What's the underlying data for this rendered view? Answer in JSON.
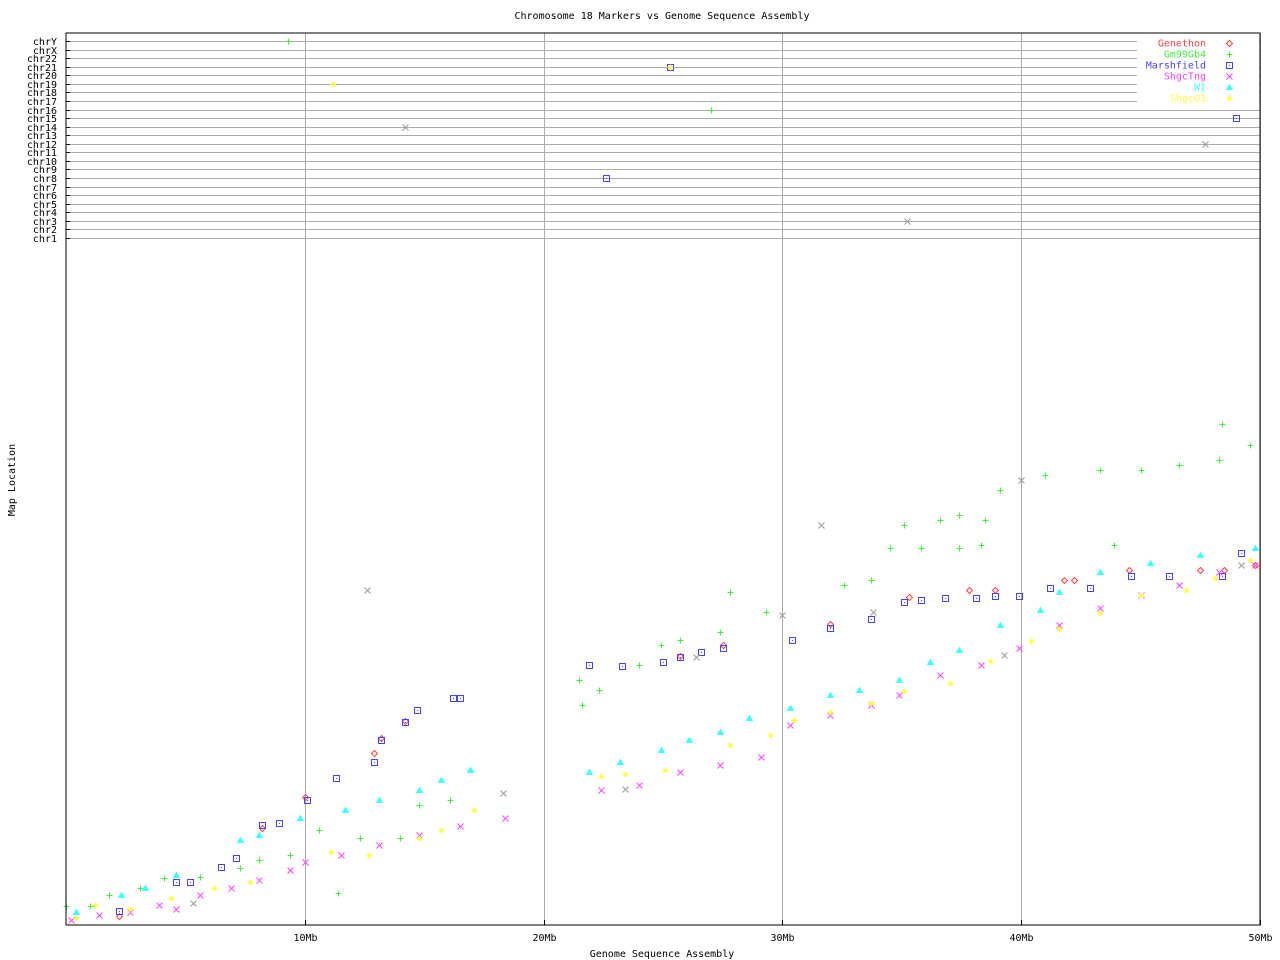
{
  "chart_data": {
    "type": "scatter",
    "title": "Chromosome 18 Markers vs Genome Sequence Assembly",
    "xlabel": "Genome Sequence Assembly",
    "ylabel": "Map Location",
    "xlim": [
      0,
      50
    ],
    "x_ticks": [
      {
        "value": 10,
        "label": "10Mb"
      },
      {
        "value": 20,
        "label": "20Mb"
      },
      {
        "value": 30,
        "label": "30Mb"
      },
      {
        "value": 40,
        "label": "40Mb"
      },
      {
        "value": 50,
        "label": "50Mb"
      }
    ],
    "ylim": [
      0,
      100
    ],
    "y_chromosome_rows": [
      "chrY",
      "chrX",
      "chr22",
      "chr21",
      "chr20",
      "chr19",
      "chr18",
      "chr17",
      "chr16",
      "chr15",
      "chr14",
      "chr13",
      "chr12",
      "chr11",
      "chr10",
      "chr9",
      "chr8",
      "chr7",
      "chr6",
      "chr5",
      "chr4",
      "chr3",
      "chr2",
      "chr1"
    ],
    "grid": true,
    "legend_position": "top-right",
    "series": [
      {
        "name": "Genethon",
        "color": "#ff4444",
        "marker": "diamond",
        "points": [
          [
            2.2,
            1.3
          ],
          [
            8.2,
            14.3
          ],
          [
            10.0,
            18.8
          ],
          [
            12.9,
            25.3
          ],
          [
            13.2,
            27.5
          ],
          [
            14.2,
            30.0
          ],
          [
            25.7,
            39.6
          ],
          [
            27.5,
            41.2
          ],
          [
            32.0,
            44.3
          ],
          [
            35.3,
            48.2
          ],
          [
            37.8,
            49.3
          ],
          [
            38.9,
            49.3
          ],
          [
            41.8,
            50.7
          ],
          [
            42.2,
            50.7
          ],
          [
            44.5,
            52.2
          ],
          [
            47.5,
            52.2
          ],
          [
            48.5,
            52.2
          ],
          [
            49.8,
            52.9
          ]
        ],
        "off_chromosome": []
      },
      {
        "name": "Gm99Gb4",
        "color": "#44ee44",
        "marker": "plus",
        "points": [
          [
            0,
            2.8
          ],
          [
            1.0,
            2.8
          ],
          [
            1.8,
            4.4
          ],
          [
            3.1,
            5.4
          ],
          [
            4.1,
            6.9
          ],
          [
            5.6,
            7.1
          ],
          [
            7.3,
            8.4
          ],
          [
            8.1,
            9.6
          ],
          [
            9.4,
            10.3
          ],
          [
            10.6,
            14.0
          ],
          [
            12.3,
            12.8
          ],
          [
            14.0,
            12.8
          ],
          [
            14.8,
            17.6
          ],
          [
            16.1,
            18.4
          ],
          [
            16.9,
            22.8
          ],
          [
            11.4,
            4.7
          ],
          [
            21.5,
            36.0
          ],
          [
            22.3,
            34.6
          ],
          [
            21.6,
            32.4
          ],
          [
            24.0,
            38.2
          ],
          [
            24.9,
            41.2
          ],
          [
            25.7,
            41.9
          ],
          [
            27.4,
            43.1
          ],
          [
            27.8,
            49.0
          ],
          [
            29.3,
            46.0
          ],
          [
            32.6,
            50.0
          ],
          [
            33.7,
            50.7
          ],
          [
            34.5,
            55.4
          ],
          [
            35.8,
            55.4
          ],
          [
            37.4,
            55.4
          ],
          [
            38.3,
            55.9
          ],
          [
            35.1,
            58.8
          ],
          [
            36.6,
            59.6
          ],
          [
            37.4,
            60.3
          ],
          [
            38.5,
            59.6
          ],
          [
            39.1,
            64.0
          ],
          [
            41.0,
            66.2
          ],
          [
            43.3,
            66.9
          ],
          [
            45.0,
            66.9
          ],
          [
            46.6,
            67.6
          ],
          [
            48.3,
            68.4
          ],
          [
            48.4,
            73.7
          ],
          [
            49.6,
            70.6
          ],
          [
            43.9,
            55.9
          ]
        ],
        "off_chromosome": [
          {
            "chr": "chr16",
            "x": 27.0
          },
          {
            "chr": "chrY",
            "x": 9.3
          }
        ]
      },
      {
        "name": "Marshfield",
        "color": "#4444ff",
        "marker": "square",
        "points": [
          [
            2.2,
            2.1
          ],
          [
            4.6,
            6.3
          ],
          [
            5.2,
            6.3
          ],
          [
            6.5,
            8.5
          ],
          [
            7.1,
            9.9
          ],
          [
            8.2,
            14.7
          ],
          [
            8.9,
            15.0
          ],
          [
            10.1,
            18.4
          ],
          [
            11.3,
            21.6
          ],
          [
            12.9,
            24.0
          ],
          [
            13.2,
            27.2
          ],
          [
            14.2,
            29.9
          ],
          [
            14.7,
            31.6
          ],
          [
            16.2,
            33.4
          ],
          [
            16.5,
            33.4
          ],
          [
            21.9,
            38.2
          ],
          [
            23.3,
            38.1
          ],
          [
            25.0,
            38.7
          ],
          [
            25.7,
            39.4
          ],
          [
            26.6,
            40.1
          ],
          [
            27.5,
            40.7
          ],
          [
            30.4,
            41.9
          ],
          [
            32.0,
            43.7
          ],
          [
            33.7,
            45.0
          ],
          [
            35.1,
            47.5
          ],
          [
            35.8,
            47.8
          ],
          [
            36.8,
            48.1
          ],
          [
            38.1,
            48.1
          ],
          [
            38.9,
            48.4
          ],
          [
            39.9,
            48.4
          ],
          [
            41.2,
            49.6
          ],
          [
            42.9,
            49.6
          ],
          [
            44.6,
            51.3
          ],
          [
            46.2,
            51.3
          ],
          [
            48.4,
            51.3
          ],
          [
            49.2,
            54.7
          ]
        ],
        "off_chromosome": [
          {
            "chr": "chr21",
            "x": 25.3
          },
          {
            "chr": "chr8",
            "x": 22.6
          },
          {
            "chr": "chr15",
            "x": 49.0
          }
        ]
      },
      {
        "name": "ShgcTng",
        "color": "#ff44ff",
        "marker": "cross",
        "points": [
          [
            0.2,
            0.7
          ],
          [
            1.4,
            1.5
          ],
          [
            2.7,
            1.9
          ],
          [
            3.9,
            2.9
          ],
          [
            4.6,
            2.4
          ],
          [
            5.6,
            4.4
          ],
          [
            6.9,
            5.4
          ],
          [
            8.1,
            6.6
          ],
          [
            9.4,
            8.1
          ],
          [
            10.0,
            9.3
          ],
          [
            11.5,
            10.3
          ],
          [
            13.1,
            11.8
          ],
          [
            14.8,
            13.2
          ],
          [
            16.5,
            14.6
          ],
          [
            18.4,
            15.7
          ],
          [
            22.4,
            19.9
          ],
          [
            24.0,
            20.6
          ],
          [
            25.7,
            22.5
          ],
          [
            27.4,
            23.5
          ],
          [
            29.1,
            24.7
          ],
          [
            30.3,
            29.4
          ],
          [
            32.0,
            30.9
          ],
          [
            33.7,
            32.4
          ],
          [
            34.9,
            33.8
          ],
          [
            36.6,
            36.8
          ],
          [
            38.3,
            38.2
          ],
          [
            39.9,
            40.7
          ],
          [
            41.6,
            44.1
          ],
          [
            43.3,
            46.6
          ],
          [
            45.0,
            48.5
          ],
          [
            46.6,
            50.0
          ],
          [
            48.3,
            51.9
          ],
          [
            49.8,
            52.9
          ]
        ],
        "off_chromosome": []
      },
      {
        "name": "WI",
        "color": "#44ffff",
        "marker": "triangle",
        "points": [
          [
            0.4,
            1.9
          ],
          [
            2.3,
            4.4
          ],
          [
            3.3,
            5.4
          ],
          [
            4.6,
            7.4
          ],
          [
            7.3,
            12.5
          ],
          [
            8.1,
            13.2
          ],
          [
            9.8,
            15.7
          ],
          [
            11.7,
            16.9
          ],
          [
            13.1,
            18.4
          ],
          [
            14.8,
            19.9
          ],
          [
            15.7,
            21.3
          ],
          [
            16.9,
            22.8
          ],
          [
            21.9,
            22.5
          ],
          [
            23.2,
            24.0
          ],
          [
            24.9,
            25.7
          ],
          [
            26.1,
            27.2
          ],
          [
            27.4,
            28.4
          ],
          [
            28.6,
            30.4
          ],
          [
            30.3,
            31.9
          ],
          [
            32.0,
            33.8
          ],
          [
            33.2,
            34.6
          ],
          [
            34.9,
            36.0
          ],
          [
            36.2,
            38.7
          ],
          [
            37.4,
            40.4
          ],
          [
            39.1,
            44.1
          ],
          [
            40.8,
            46.3
          ],
          [
            41.6,
            49.0
          ],
          [
            43.3,
            51.9
          ],
          [
            45.4,
            53.2
          ],
          [
            47.5,
            54.4
          ],
          [
            49.8,
            55.4
          ]
        ],
        "off_chromosome": []
      },
      {
        "name": "ShgcG3",
        "color": "#ffff44",
        "marker": "asterisk",
        "points": [
          [
            0.4,
            1.0
          ],
          [
            1.2,
            2.9
          ],
          [
            2.7,
            2.4
          ],
          [
            4.4,
            3.9
          ],
          [
            6.2,
            5.4
          ],
          [
            7.7,
            6.3
          ],
          [
            11.1,
            10.7
          ],
          [
            12.7,
            10.3
          ],
          [
            14.8,
            12.8
          ],
          [
            15.7,
            13.9
          ],
          [
            17.1,
            16.9
          ],
          [
            22.4,
            21.9
          ],
          [
            23.4,
            22.2
          ],
          [
            25.1,
            22.8
          ],
          [
            27.8,
            26.5
          ],
          [
            29.5,
            27.9
          ],
          [
            30.5,
            30.1
          ],
          [
            32.0,
            31.3
          ],
          [
            33.7,
            32.6
          ],
          [
            35.1,
            34.4
          ],
          [
            37.0,
            35.6
          ],
          [
            38.7,
            38.8
          ],
          [
            40.4,
            41.8
          ],
          [
            41.6,
            43.5
          ],
          [
            43.3,
            45.9
          ],
          [
            45.0,
            48.5
          ],
          [
            46.9,
            49.3
          ],
          [
            48.1,
            51.0
          ],
          [
            49.6,
            53.7
          ]
        ],
        "off_chromosome": [
          {
            "chr": "chr19",
            "x": 11.2
          },
          {
            "chr": "chr21",
            "x": 25.3
          }
        ]
      },
      {
        "color": "#999999",
        "marker": "cross",
        "points": [
          [
            5.3,
            3.2
          ],
          [
            12.6,
            49.3
          ],
          [
            18.3,
            19.4
          ],
          [
            23.4,
            20.0
          ],
          [
            26.4,
            39.4
          ],
          [
            30.0,
            45.6
          ],
          [
            31.6,
            58.8
          ],
          [
            33.8,
            46.0
          ],
          [
            39.3,
            39.7
          ],
          [
            40.0,
            65.4
          ],
          [
            49.2,
            52.9
          ]
        ],
        "off_chromosome": [
          {
            "chr": "chr14",
            "x": 14.2
          },
          {
            "chr": "chr3",
            "x": 35.2
          },
          {
            "chr": "chr12",
            "x": 47.7
          }
        ]
      }
    ]
  }
}
